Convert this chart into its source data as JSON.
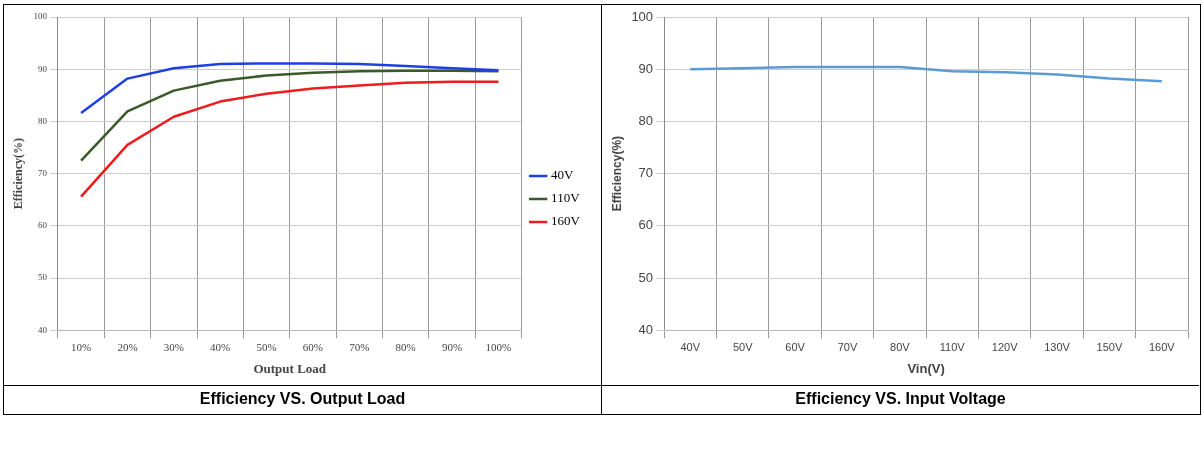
{
  "chart_data": [
    {
      "type": "line",
      "title": "Efficiency VS. Output Load",
      "xlabel": "Output Load",
      "ylabel": "Efficiency(%)",
      "categories": [
        "10%",
        "20%",
        "30%",
        "40%",
        "50%",
        "60%",
        "70%",
        "80%",
        "90%",
        "100%"
      ],
      "series": [
        {
          "name": "40V",
          "color": "#1f3fe0",
          "values": [
            81.6,
            88.2,
            90.2,
            91.0,
            91.1,
            91.1,
            91.0,
            90.6,
            90.2,
            89.8
          ]
        },
        {
          "name": "110V",
          "color": "#3b5a2a",
          "values": [
            72.5,
            81.9,
            85.9,
            87.8,
            88.8,
            89.3,
            89.6,
            89.7,
            89.7,
            89.6
          ]
        },
        {
          "name": "160V",
          "color": "#ee1c1c",
          "values": [
            65.6,
            75.5,
            80.9,
            83.8,
            85.3,
            86.3,
            86.9,
            87.4,
            87.6,
            87.6
          ]
        }
      ],
      "ylim": [
        40,
        100
      ],
      "yticks": [
        40,
        50,
        60,
        70,
        80,
        90,
        100
      ],
      "grid": true,
      "legend": "right",
      "marker": "none",
      "line_style": "solid"
    },
    {
      "type": "line",
      "title": "Efficiency VS. Input Voltage",
      "xlabel": "Vin(V)",
      "ylabel": "Efficiency(%)",
      "categories": [
        "40V",
        "50V",
        "60V",
        "70V",
        "80V",
        "110V",
        "120V",
        "130V",
        "150V",
        "160V"
      ],
      "series": [
        {
          "color": "#5b9bd5",
          "values": [
            90.0,
            90.2,
            90.4,
            90.4,
            90.4,
            89.6,
            89.4,
            89.0,
            88.2,
            87.7
          ]
        }
      ],
      "ylim": [
        40,
        100
      ],
      "yticks": [
        40,
        50,
        60,
        70,
        80,
        90,
        100
      ],
      "grid": true,
      "marker": "none",
      "line_style": "solid"
    }
  ]
}
